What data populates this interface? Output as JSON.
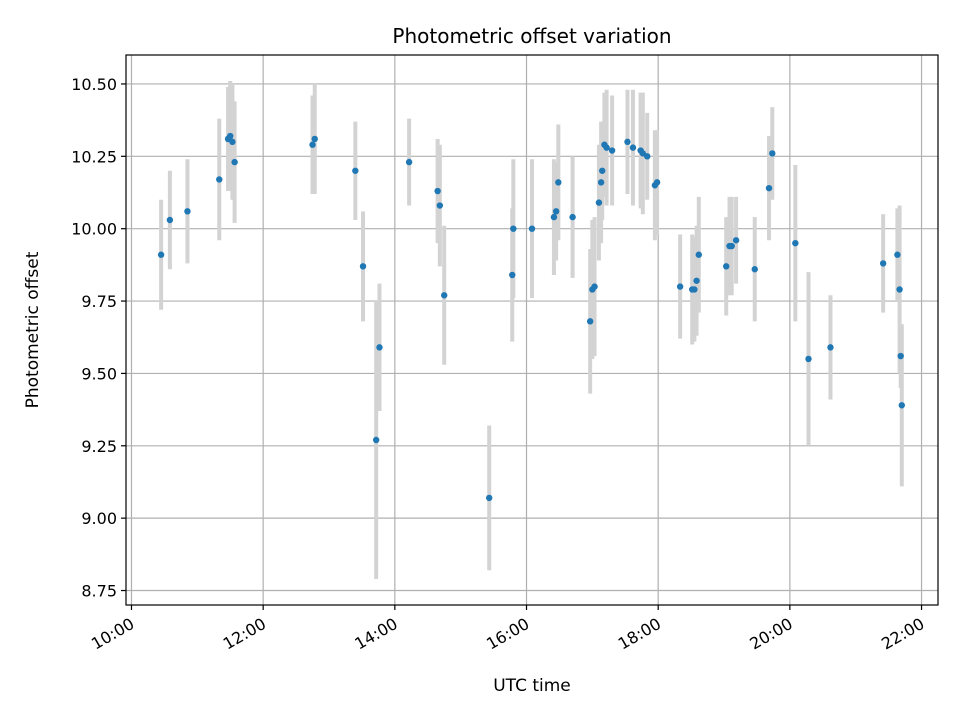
{
  "chart_data": {
    "type": "scatter",
    "title": "Photometric offset variation",
    "xlabel": "UTC time",
    "ylabel": "Photometric offset",
    "x_unit": "hours UTC",
    "xlim": [
      "09:55",
      "22:15"
    ],
    "ylim": [
      8.7,
      10.6
    ],
    "x_ticks": [
      "10:00",
      "12:00",
      "14:00",
      "16:00",
      "18:00",
      "20:00",
      "22:00"
    ],
    "y_ticks": [
      "8.75",
      "9.00",
      "9.25",
      "9.50",
      "9.75",
      "10.00",
      "10.25",
      "10.50"
    ],
    "grid": true,
    "colors": {
      "point": "#1f77b4",
      "errorbar": "#d3d3d3",
      "grid": "#b0b0b0"
    },
    "series": [
      {
        "x": [
          "10:27",
          "10:35",
          "10:51",
          "11:20",
          "11:28",
          "11:30",
          "11:32",
          "11:34",
          "12:45",
          "12:47",
          "13:24",
          "13:31",
          "13:43",
          "13:46",
          "14:13",
          "14:39",
          "14:41",
          "14:45",
          "15:26",
          "15:47",
          "15:48",
          "16:05",
          "16:25",
          "16:27",
          "16:29",
          "16:42",
          "16:58",
          "17:00",
          "17:02",
          "17:06",
          "17:08",
          "17:09",
          "17:11",
          "17:13",
          "17:18",
          "17:32",
          "17:37",
          "17:44",
          "17:46",
          "17:50",
          "17:57",
          "17:59",
          "18:20",
          "18:31",
          "18:33",
          "18:35",
          "18:37",
          "19:02",
          "19:05",
          "19:07",
          "19:11",
          "19:28",
          "19:41",
          "19:44",
          "20:05",
          "20:17",
          "20:37",
          "21:25",
          "21:38",
          "21:40",
          "21:41",
          "21:42"
        ],
        "y": [
          9.91,
          10.03,
          10.06,
          10.17,
          10.31,
          10.32,
          10.3,
          10.23,
          10.29,
          10.31,
          10.2,
          9.87,
          9.27,
          9.59,
          10.23,
          10.13,
          10.08,
          9.77,
          9.07,
          9.84,
          10.0,
          10.0,
          10.04,
          10.06,
          10.16,
          10.04,
          9.68,
          9.79,
          9.8,
          10.09,
          10.16,
          10.2,
          10.29,
          10.28,
          10.27,
          10.3,
          10.28,
          10.27,
          10.26,
          10.25,
          10.15,
          10.16,
          9.8,
          9.79,
          9.79,
          9.82,
          9.91,
          9.87,
          9.94,
          9.94,
          9.96,
          9.86,
          10.14,
          10.26,
          9.95,
          9.55,
          9.59,
          9.88,
          9.91,
          9.79,
          9.56,
          9.39
        ],
        "yerr": [
          0.19,
          0.17,
          0.18,
          0.21,
          0.18,
          0.19,
          0.2,
          0.21,
          0.17,
          0.19,
          0.17,
          0.19,
          0.48,
          0.22,
          0.15,
          0.18,
          0.21,
          0.24,
          0.25,
          0.23,
          0.24,
          0.24,
          0.2,
          0.17,
          0.2,
          0.21,
          0.25,
          0.24,
          0.24,
          0.2,
          0.21,
          0.17,
          0.18,
          0.2,
          0.19,
          0.18,
          0.2,
          0.2,
          0.21,
          0.15,
          0.19,
          0.18,
          0.18,
          0.19,
          0.18,
          0.19,
          0.2,
          0.17,
          0.17,
          0.17,
          0.15,
          0.18,
          0.18,
          0.16,
          0.27,
          0.3,
          0.18,
          0.17,
          0.16,
          0.29,
          0.11,
          0.28
        ]
      }
    ]
  }
}
